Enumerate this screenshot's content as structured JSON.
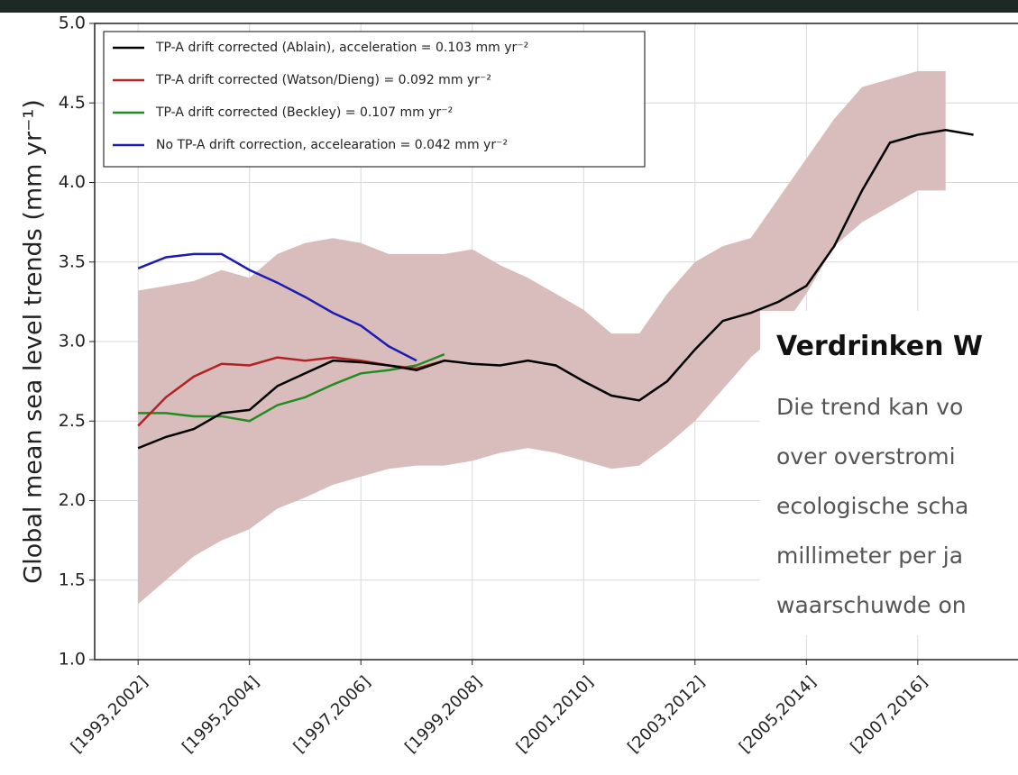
{
  "chart_data": {
    "type": "line",
    "ylabel": "Global mean sea level trends (mm yr⁻¹)",
    "x": [
      1993,
      1993.5,
      1994,
      1994.5,
      1995,
      1995.5,
      1996,
      1996.5,
      1997,
      1997.5,
      1998,
      1998.5,
      1999,
      1999.5,
      2000,
      2000.5,
      2001,
      2001.5,
      2002,
      2002.5,
      2003,
      2003.5,
      2004,
      2004.5,
      2005,
      2005.5,
      2006,
      2006.5,
      2007,
      2007.5,
      2008
    ],
    "xlim": [
      1992.22,
      2008.8
    ],
    "xticks": [
      {
        "value": 1993,
        "label": "[1993,2002]"
      },
      {
        "value": 1995,
        "label": "[1995,2004]"
      },
      {
        "value": 1997,
        "label": "[1997,2006]"
      },
      {
        "value": 1999,
        "label": "[1999,2008]"
      },
      {
        "value": 2001,
        "label": "[2001,2010]"
      },
      {
        "value": 2003,
        "label": "[2003,2012]"
      },
      {
        "value": 2005,
        "label": "[2005,2014]"
      },
      {
        "value": 2007,
        "label": "[2007,2016]"
      }
    ],
    "ylim": [
      1,
      5
    ],
    "yticks": [
      {
        "value": 1,
        "label": "1.0"
      },
      1.5,
      {
        "value": 2,
        "label": "2.0"
      },
      2.5,
      {
        "value": 3,
        "label": "3.0"
      },
      3.5,
      {
        "value": 4,
        "label": "4.0"
      },
      4.5,
      {
        "value": 5,
        "label": "5.0"
      }
    ],
    "grid": true,
    "legend": "upper left",
    "band": {
      "color": "#d9bcbc",
      "upper": [
        3.32,
        3.35,
        3.38,
        3.45,
        3.4,
        3.55,
        3.62,
        3.65,
        3.62,
        3.55,
        3.55,
        3.55,
        3.58,
        3.48,
        3.4,
        3.3,
        3.2,
        3.05,
        3.05,
        3.3,
        3.5,
        3.6,
        3.65,
        3.9,
        4.15,
        4.4,
        4.6,
        4.65,
        4.7,
        4.7,
        null
      ],
      "lower": [
        1.35,
        1.5,
        1.65,
        1.75,
        1.82,
        1.95,
        2.02,
        2.1,
        2.15,
        2.2,
        2.22,
        2.22,
        2.25,
        2.3,
        2.33,
        2.3,
        2.25,
        2.2,
        2.22,
        2.35,
        2.5,
        2.7,
        2.9,
        3.05,
        3.3,
        3.6,
        3.75,
        3.85,
        3.95,
        3.95,
        null
      ]
    },
    "series": [
      {
        "name": "TP-A drift corrected (Ablain), acceleration = 0.103 mm yr⁻²",
        "color": "#000000",
        "values": [
          2.33,
          2.4,
          2.45,
          2.55,
          2.57,
          2.72,
          2.8,
          2.88,
          2.87,
          2.85,
          2.82,
          2.88,
          2.86,
          2.85,
          2.88,
          2.85,
          2.75,
          2.66,
          2.63,
          2.75,
          2.95,
          3.13,
          3.18,
          3.25,
          3.35,
          3.6,
          3.95,
          4.25,
          4.3,
          4.33,
          4.3
        ]
      },
      {
        "name": "TP-A drift corrected (Watson/Dieng) = 0.092 mm yr⁻²",
        "color": "#b22222",
        "values": [
          2.47,
          2.65,
          2.78,
          2.86,
          2.85,
          2.9,
          2.88,
          2.9,
          2.88,
          2.85,
          2.83,
          2.88,
          null,
          null,
          null,
          null,
          null,
          null,
          null,
          null,
          null,
          null,
          null,
          null,
          null,
          null,
          null,
          null,
          null,
          null,
          null
        ]
      },
      {
        "name": "TP-A drift corrected (Beckley) = 0.107 mm yr⁻²",
        "color": "#228b22",
        "values": [
          2.55,
          2.55,
          2.53,
          2.53,
          2.5,
          2.6,
          2.65,
          2.73,
          2.8,
          2.82,
          2.85,
          2.92,
          null,
          null,
          null,
          null,
          null,
          null,
          null,
          null,
          null,
          null,
          null,
          null,
          null,
          null,
          null,
          null,
          null,
          null,
          null
        ]
      },
      {
        "name": "No TP-A drift correction, accelearation = 0.042 mm yr⁻²",
        "color": "#1c1cb0",
        "values": [
          3.46,
          3.53,
          3.55,
          3.55,
          3.45,
          3.37,
          3.28,
          3.18,
          3.1,
          2.97,
          2.88,
          null,
          null,
          null,
          null,
          null,
          null,
          null,
          null,
          null,
          null,
          null,
          null,
          null,
          null,
          null,
          null,
          null,
          null,
          null,
          null
        ]
      }
    ]
  },
  "overlay": {
    "title": "Verdrinken W",
    "lines": [
      "Die trend kan vo",
      "over overstromi",
      "ecologische scha",
      "millimeter per ja",
      "waarschuwde on"
    ]
  }
}
